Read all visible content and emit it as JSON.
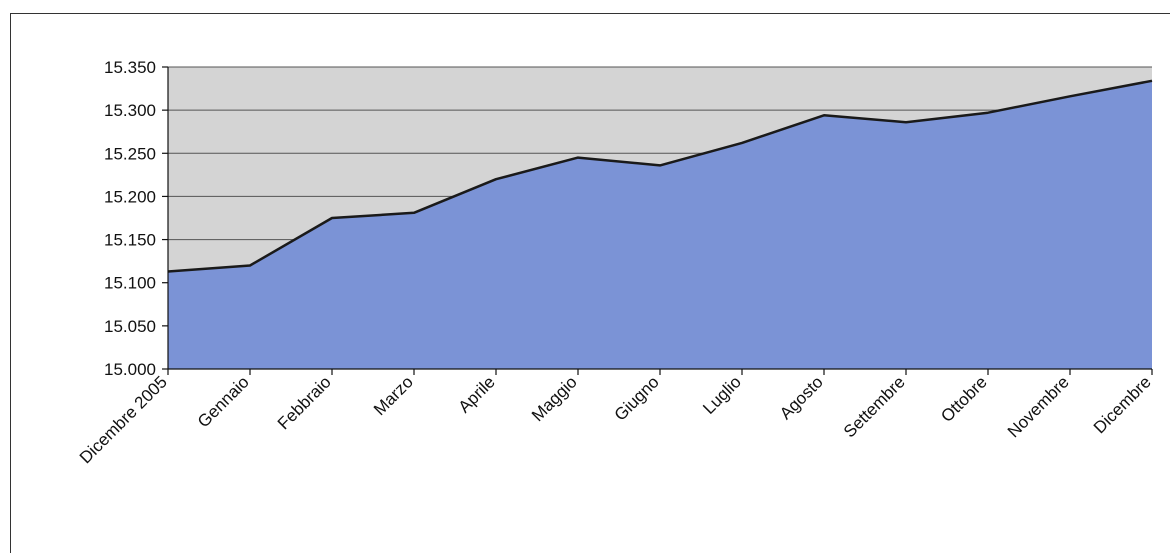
{
  "chart_data": {
    "type": "area",
    "categories": [
      "Dicembre 2005",
      "Gennaio",
      "Febbraio",
      "Marzo",
      "Aprile",
      "Maggio",
      "Giugno",
      "Luglio",
      "Agosto",
      "Settembre",
      "Ottobre",
      "Novembre",
      "Dicembre"
    ],
    "values": [
      15113,
      15120,
      15175,
      15181,
      15220,
      15245,
      15236,
      15262,
      15294,
      15286,
      15297,
      15316,
      15334
    ],
    "yticks": [
      "15.000",
      "15.050",
      "15.100",
      "15.150",
      "15.200",
      "15.250",
      "15.300",
      "15.350"
    ],
    "ylim": [
      15000,
      15350
    ],
    "title": "",
    "xlabel": "",
    "ylabel": "",
    "grid": true,
    "legend": "none",
    "colors": {
      "fill": "#7b93d6",
      "line": "#1a1a1a",
      "plot_background": "#d4d4d4",
      "gridline": "#555555"
    }
  }
}
